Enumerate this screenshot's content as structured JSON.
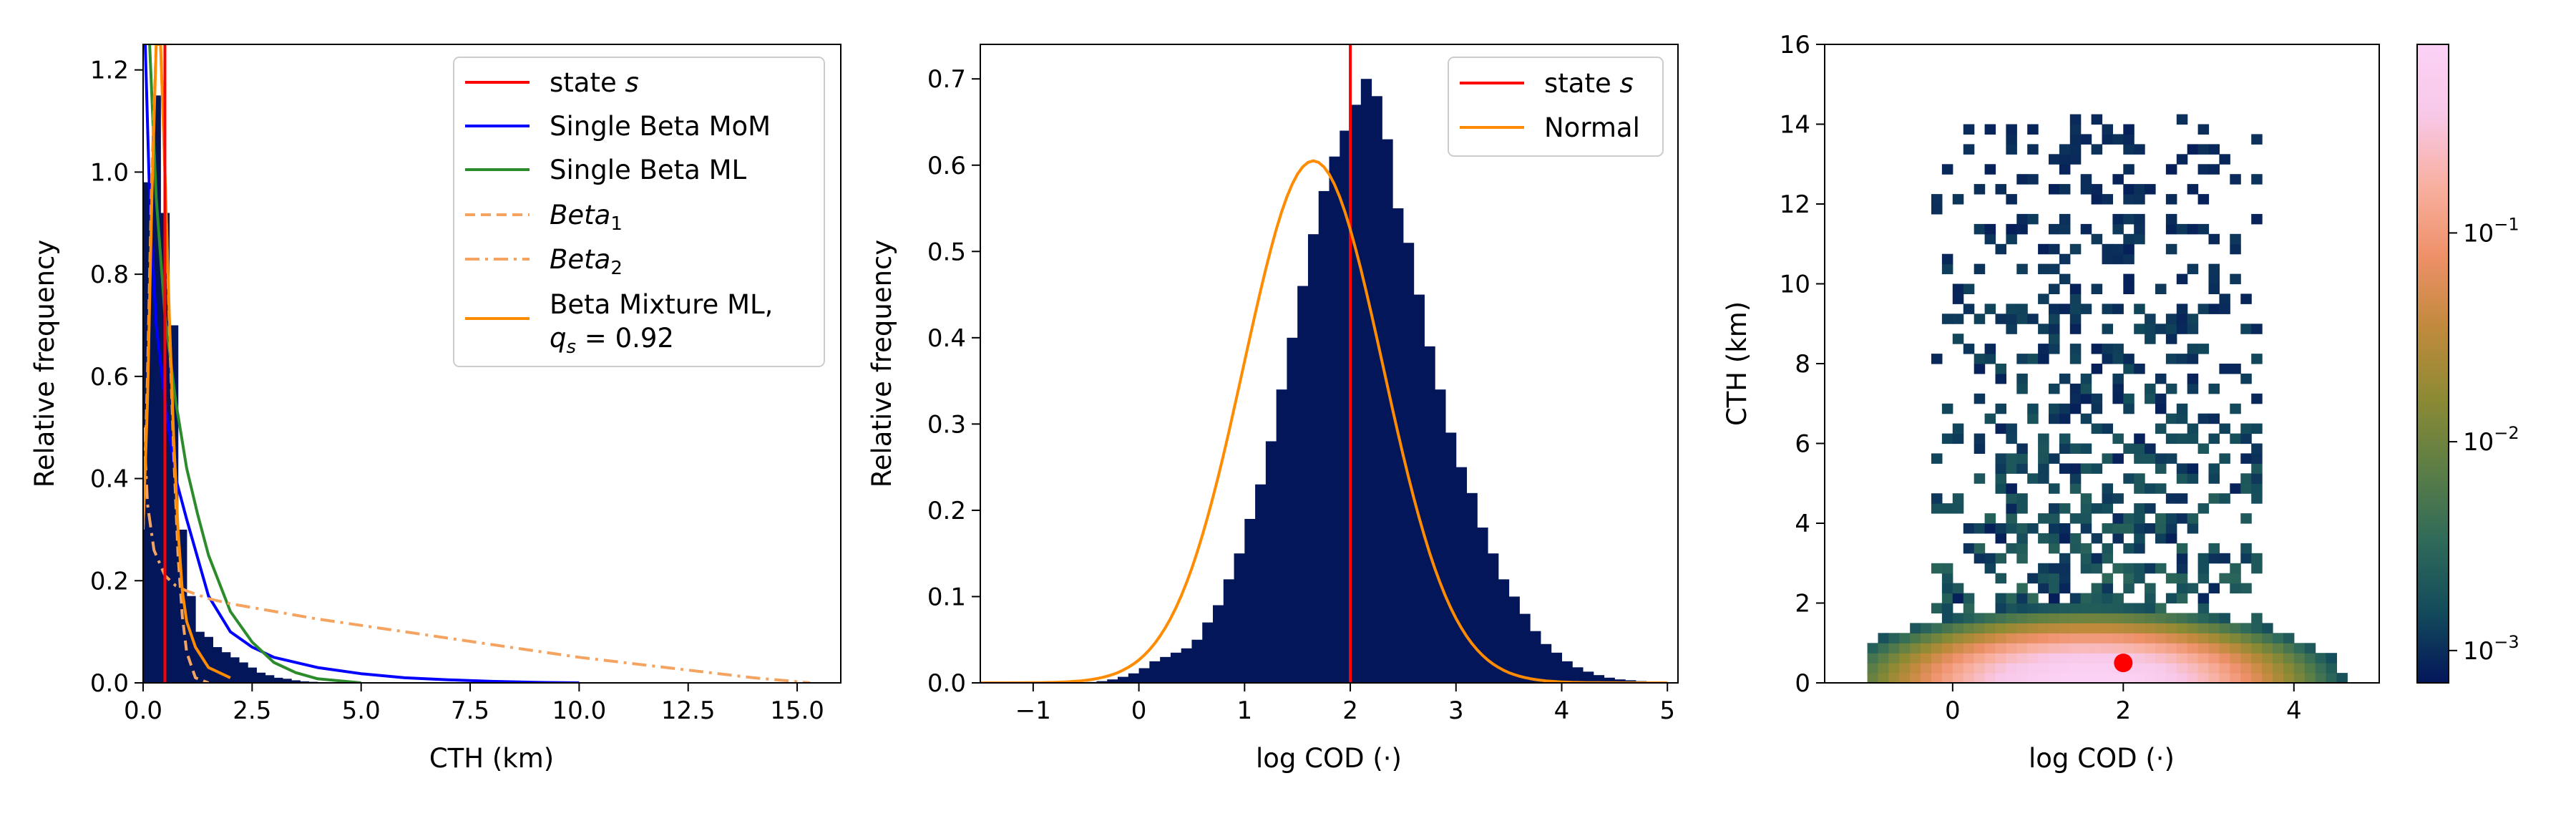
{
  "chart_data": [
    {
      "type": "histogram+line",
      "xlabel": "CTH (km)",
      "ylabel": "Relative frequency",
      "xlim": [
        0,
        16
      ],
      "ylim": [
        0,
        1.25
      ],
      "xticks": [
        0.0,
        2.5,
        5.0,
        7.5,
        10.0,
        12.5,
        15.0
      ],
      "xtick_labels": [
        "0.0",
        "2.5",
        "5.0",
        "7.5",
        "10.0",
        "12.5",
        "15.0"
      ],
      "yticks": [
        0.0,
        0.2,
        0.4,
        0.6,
        0.8,
        1.0,
        1.2
      ],
      "ytick_labels": [
        "0.0",
        "0.2",
        "0.4",
        "0.6",
        "0.8",
        "1.0",
        "1.2"
      ],
      "legend_position": "top-right",
      "histogram": {
        "color": "#03165a",
        "bin_edges": [
          0.0,
          0.2,
          0.4,
          0.6,
          0.8,
          1.0,
          1.2,
          1.4,
          1.6,
          1.8,
          2.0,
          2.2,
          2.4,
          2.6,
          2.8,
          3.0,
          3.2,
          3.4,
          3.6,
          3.8,
          4.0
        ],
        "values": [
          0.98,
          1.15,
          0.92,
          0.7,
          0.3,
          0.17,
          0.1,
          0.09,
          0.07,
          0.06,
          0.05,
          0.04,
          0.03,
          0.02,
          0.015,
          0.01,
          0.008,
          0.005,
          0.003,
          0.002
        ]
      },
      "state_line": {
        "label_prefix": "state ",
        "label_italic": "s",
        "x": 0.5,
        "color": "#ff0000"
      },
      "series": [
        {
          "name": "Single Beta MoM",
          "color": "#0000ff",
          "style": "solid",
          "x": [
            0.05,
            0.15,
            0.3,
            0.5,
            0.75,
            1.0,
            1.5,
            2.0,
            2.5,
            3.0,
            4.0,
            5.0,
            6.0,
            7.0,
            8.0,
            9.0,
            10.0
          ],
          "y": [
            1.25,
            0.95,
            0.7,
            0.55,
            0.4,
            0.32,
            0.17,
            0.1,
            0.07,
            0.05,
            0.03,
            0.018,
            0.01,
            0.006,
            0.003,
            0.001,
            0.0
          ]
        },
        {
          "name": "Single Beta ML",
          "color": "#2c8c2c",
          "style": "solid",
          "x": [
            0.15,
            0.3,
            0.5,
            0.75,
            1.0,
            1.25,
            1.5,
            2.0,
            2.5,
            3.0,
            3.5,
            4.0,
            5.0
          ],
          "y": [
            1.25,
            0.95,
            0.72,
            0.55,
            0.42,
            0.33,
            0.25,
            0.14,
            0.08,
            0.04,
            0.02,
            0.008,
            0.0
          ]
        },
        {
          "name_italic": "Beta",
          "name_sub": "1",
          "color": "#f4a460",
          "style": "dashed",
          "x": [
            0.0,
            0.1,
            0.2,
            0.3,
            0.4,
            0.5,
            0.6,
            0.7,
            0.8,
            0.9,
            1.0,
            1.2,
            1.5
          ],
          "y": [
            0.3,
            0.6,
            1.0,
            1.25,
            1.25,
            1.0,
            0.7,
            0.45,
            0.25,
            0.13,
            0.06,
            0.01,
            0.0
          ]
        },
        {
          "name_italic": "Beta",
          "name_sub": "2",
          "color": "#f4a460",
          "style": "dashdot",
          "x": [
            0.02,
            0.1,
            0.25,
            0.5,
            0.75,
            1.0,
            1.5,
            2.0,
            3.0,
            4.0,
            6.0,
            8.0,
            10.0,
            12.0,
            14.0,
            15.3
          ],
          "y": [
            0.5,
            0.35,
            0.26,
            0.21,
            0.19,
            0.18,
            0.165,
            0.155,
            0.14,
            0.125,
            0.1,
            0.075,
            0.05,
            0.03,
            0.01,
            0.0
          ]
        },
        {
          "name": "Beta Mixture ML,",
          "name_line2_prefix": "q",
          "name_line2_sub": "s",
          "name_line2_suffix": " = 0.92",
          "color": "#ff8c00",
          "style": "solid",
          "x": [
            0.0,
            0.1,
            0.2,
            0.3,
            0.4,
            0.5,
            0.6,
            0.7,
            0.8,
            0.9,
            1.0,
            1.2,
            1.5,
            2.0
          ],
          "y": [
            0.3,
            0.55,
            0.95,
            1.25,
            1.25,
            1.0,
            0.72,
            0.48,
            0.3,
            0.18,
            0.12,
            0.07,
            0.03,
            0.01
          ]
        }
      ]
    },
    {
      "type": "histogram+line",
      "xlabel": "log COD (·)",
      "ylabel": "Relative frequency",
      "xlim": [
        -1.5,
        5.1
      ],
      "ylim": [
        0,
        0.74
      ],
      "xticks": [
        -1,
        0,
        1,
        2,
        3,
        4,
        5
      ],
      "xtick_labels": [
        "−1",
        "0",
        "1",
        "2",
        "3",
        "4",
        "5"
      ],
      "yticks": [
        0.0,
        0.1,
        0.2,
        0.3,
        0.4,
        0.5,
        0.6,
        0.7
      ],
      "ytick_labels": [
        "0.0",
        "0.1",
        "0.2",
        "0.3",
        "0.4",
        "0.5",
        "0.6",
        "0.7"
      ],
      "legend_position": "top-right",
      "histogram": {
        "color": "#03165a",
        "bin_start": -0.5,
        "bin_width": 0.1,
        "values": [
          0.001,
          0.002,
          0.004,
          0.007,
          0.011,
          0.017,
          0.025,
          0.03,
          0.035,
          0.04,
          0.05,
          0.07,
          0.09,
          0.12,
          0.15,
          0.19,
          0.23,
          0.28,
          0.34,
          0.4,
          0.46,
          0.52,
          0.57,
          0.61,
          0.64,
          0.67,
          0.7,
          0.68,
          0.63,
          0.55,
          0.51,
          0.45,
          0.39,
          0.34,
          0.29,
          0.25,
          0.22,
          0.18,
          0.15,
          0.12,
          0.1,
          0.08,
          0.06,
          0.045,
          0.035,
          0.025,
          0.018,
          0.013,
          0.009,
          0.006,
          0.004,
          0.003,
          0.002,
          0.001,
          0.001
        ]
      },
      "state_line": {
        "label_prefix": "state ",
        "label_italic": "s",
        "x": 2.0,
        "color": "#ff0000"
      },
      "series": [
        {
          "name": "Normal",
          "color": "#ff8c00",
          "style": "solid",
          "mean": 1.65,
          "sd": 0.66,
          "peak": 0.605,
          "x_range": [
            -1.5,
            5.0
          ]
        }
      ]
    },
    {
      "type": "heatmap",
      "xlabel": "log COD (·)",
      "ylabel": "CTH (km)",
      "xlim": [
        -1.5,
        5.0
      ],
      "ylim": [
        0,
        16
      ],
      "xticks": [
        0,
        2,
        4
      ],
      "xtick_labels": [
        "0",
        "2",
        "4"
      ],
      "yticks": [
        0,
        2,
        4,
        6,
        8,
        10,
        12,
        14,
        16
      ],
      "ytick_labels": [
        "0",
        "2",
        "4",
        "6",
        "8",
        "10",
        "12",
        "14",
        "16"
      ],
      "colorbar": {
        "scale": "log",
        "range": [
          0.0007,
          0.8
        ],
        "ticks": [
          0.001,
          0.01,
          0.1
        ],
        "tick_labels": [
          "10",
          "10",
          "10"
        ],
        "tick_exponents": [
          "−3",
          "−2",
          "−1"
        ],
        "colormap": [
          "#03165a",
          "#134b5b",
          "#2f6a5a",
          "#5b7e46",
          "#8c8a34",
          "#c08a3c",
          "#ee9068",
          "#f8b0a0",
          "#f8c8e8",
          "#fbd2f6"
        ]
      },
      "marker": {
        "x": 2.0,
        "y": 0.5,
        "color": "#ff0000"
      },
      "bins": {
        "x_start": -1.0,
        "x_width": 0.125,
        "y_start": 0,
        "y_width": 0.25
      },
      "core_density": {
        "center_x": 1.6,
        "sigma_x": 0.85,
        "sigma_y": 0.55,
        "peak": 0.8
      },
      "sparse_extent": {
        "x_min": -0.3,
        "x_max": 3.6,
        "y_max": 14.25
      }
    }
  ]
}
